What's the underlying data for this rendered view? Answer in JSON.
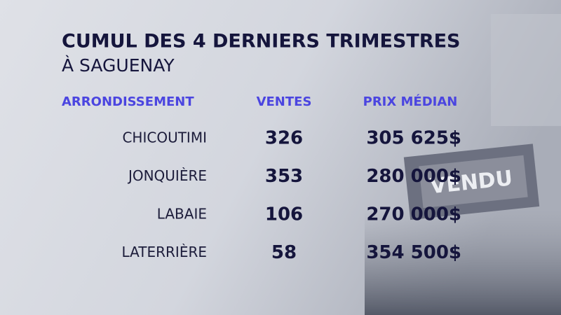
{
  "header": {
    "title": "CUMUL DES 4 DERNIERS TRIMESTRES",
    "subtitle": "À SAGUENAY"
  },
  "table": {
    "columns": [
      "ARRONDISSEMENT",
      "VENTES",
      "PRIX MÉDIAN"
    ],
    "rows": [
      [
        "CHICOUTIMI",
        326,
        "305 625$"
      ],
      [
        "JONQUIÈRE",
        353,
        "280 000$"
      ],
      [
        "LABAIE",
        106,
        "270 000$"
      ],
      [
        "LATERRIÈRE",
        58,
        "354 500$"
      ]
    ]
  },
  "background": {
    "sign": "VENDU"
  }
}
